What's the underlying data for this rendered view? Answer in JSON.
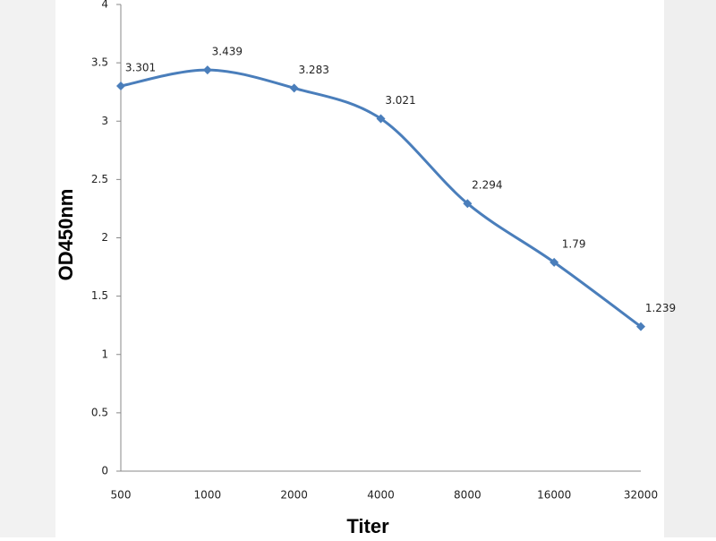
{
  "chart_data": {
    "type": "line",
    "x_label": "Titer",
    "y_label": "OD450nm",
    "categories": [
      "500",
      "1000",
      "2000",
      "4000",
      "8000",
      "16000",
      "32000"
    ],
    "series": [
      {
        "name": "OD450nm",
        "color": "#4a7ebb",
        "values": [
          3.301,
          3.439,
          3.283,
          3.021,
          2.294,
          1.79,
          1.239
        ]
      }
    ],
    "ylim": [
      0,
      4
    ],
    "yticks": [
      0,
      0.5,
      1,
      1.5,
      2,
      2.5,
      3,
      3.5,
      4
    ],
    "smooth": true,
    "data_labels": true
  }
}
